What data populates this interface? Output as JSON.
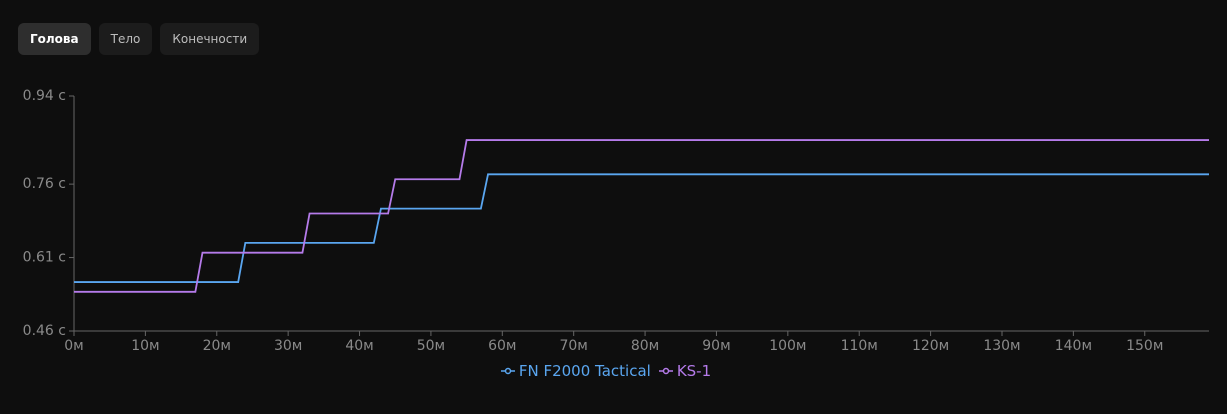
{
  "tabs": [
    "Голова",
    "Тело",
    "Конечности"
  ],
  "chart_data": {
    "type": "line",
    "xlim": [
      0,
      159
    ],
    "xticks": [
      {
        "value": 0,
        "label": "0м"
      },
      {
        "value": 10,
        "label": "10м"
      },
      {
        "value": 20,
        "label": "20м"
      },
      {
        "value": 30,
        "label": "30м"
      },
      {
        "value": 40,
        "label": "40м"
      },
      {
        "value": 50,
        "label": "50м"
      },
      {
        "value": 60,
        "label": "60м"
      },
      {
        "value": 70,
        "label": "70м"
      },
      {
        "value": 80,
        "label": "80м"
      },
      {
        "value": 90,
        "label": "90м"
      },
      {
        "value": 100,
        "label": "100м"
      },
      {
        "value": 110,
        "label": "110м"
      },
      {
        "value": 120,
        "label": "120м"
      },
      {
        "value": 130,
        "label": "130м"
      },
      {
        "value": 140,
        "label": "140м"
      },
      {
        "value": 150,
        "label": "150м"
      }
    ],
    "ylim": [
      0.46,
      0.94
    ],
    "yticks": [
      {
        "value": 0.46,
        "label": "0.46 с"
      },
      {
        "value": 0.61,
        "label": "0.61 с"
      },
      {
        "value": 0.76,
        "label": "0.76 с"
      },
      {
        "value": 0.94,
        "label": "0.94 с"
      }
    ],
    "series": [
      {
        "name": "FN F2000 Tactical",
        "color": "#5aa6f0",
        "x": [
          0,
          23,
          24,
          42,
          43,
          57,
          58,
          159
        ],
        "values": [
          0.56,
          0.56,
          0.64,
          0.64,
          0.71,
          0.71,
          0.78,
          0.78
        ]
      },
      {
        "name": "KS-1",
        "color": "#b57bea",
        "x": [
          0,
          17,
          18,
          32,
          33,
          44,
          45,
          54,
          55,
          159
        ],
        "values": [
          0.54,
          0.54,
          0.62,
          0.62,
          0.7,
          0.7,
          0.77,
          0.77,
          0.85,
          0.85
        ]
      }
    ]
  }
}
